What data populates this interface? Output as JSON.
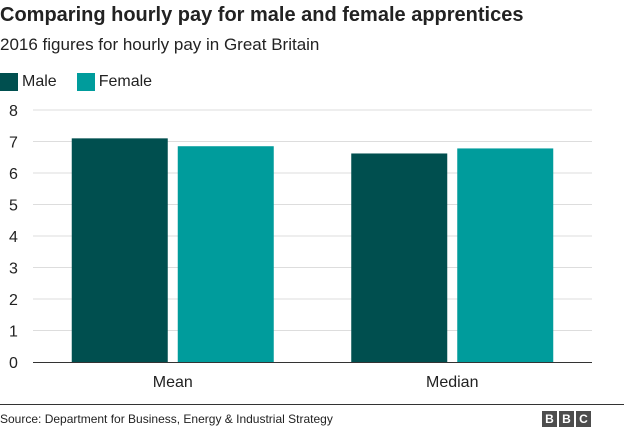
{
  "title": "Comparing hourly pay for male and female apprentices",
  "subtitle": "2016 figures for hourly pay in Great Britain",
  "source": "Source: Department for Business, Energy & Industrial Strategy",
  "logo_text": "BBC",
  "colors": {
    "male": "#004f4f",
    "female": "#009c9c",
    "gridline": "#dddddd",
    "baseline": "#333333"
  },
  "chart_data": {
    "type": "bar",
    "categories": [
      "Mean",
      "Median"
    ],
    "series": [
      {
        "name": "Male",
        "color": "#004f4f",
        "values": [
          7.1,
          6.62
        ]
      },
      {
        "name": "Female",
        "color": "#009c9c",
        "values": [
          6.85,
          6.78
        ]
      }
    ],
    "yticks": [
      0,
      1,
      2,
      3,
      4,
      5,
      6,
      7,
      8
    ],
    "ylim": [
      0,
      8
    ],
    "grid": true,
    "legend": "top-left"
  }
}
